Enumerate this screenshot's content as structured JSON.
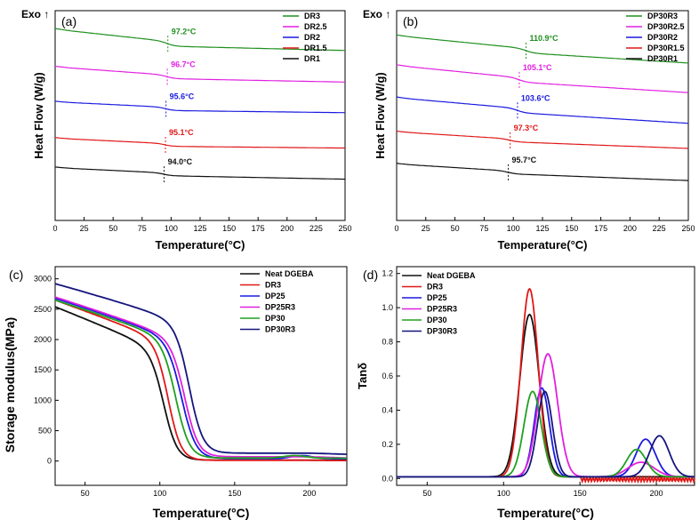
{
  "colors": {
    "green": "#1f8f1f",
    "magenta": "#e020e0",
    "blue": "#1a1adf",
    "red": "#e01818",
    "black": "#111111",
    "navy": "#15157f",
    "green2": "#20a020"
  },
  "chart_data": [
    {
      "id": "a",
      "panel_label": "(a)",
      "type": "line",
      "exo_label": "Exo ↑",
      "xlabel": "Temperature(°C)",
      "ylabel": "Heat Flow (W/g)",
      "xlim": [
        0,
        250
      ],
      "xticks": [
        "0",
        "25",
        "50",
        "75",
        "100",
        "125",
        "150",
        "175",
        "200",
        "225",
        "250"
      ],
      "series": [
        {
          "name": "DR3",
          "color_key": "green",
          "tg": 97.2,
          "tg_label": "97.2°C",
          "offset": 5.2,
          "slope_before": -0.0045,
          "slope_after": -0.001,
          "step": 0.17
        },
        {
          "name": "DR2.5",
          "color_key": "magenta",
          "tg": 96.7,
          "tg_label": "96.7°C",
          "offset": 4.0,
          "slope_before": -0.003,
          "slope_after": -0.0008,
          "step": 0.13
        },
        {
          "name": "DR2",
          "color_key": "blue",
          "tg": 95.6,
          "tg_label": "95.6°C",
          "offset": 2.85,
          "slope_before": -0.002,
          "slope_after": -0.0005,
          "step": 0.12
        },
        {
          "name": "DR1.5",
          "color_key": "red",
          "tg": 95.1,
          "tg_label": "95.1°C",
          "offset": 1.55,
          "slope_before": -0.002,
          "slope_after": -0.0004,
          "step": 0.1
        },
        {
          "name": "DR1",
          "color_key": "black",
          "tg": 94.0,
          "tg_label": "94.0°C",
          "offset": 0.5,
          "slope_before": -0.002,
          "slope_after": -0.0008,
          "step": 0.1
        }
      ]
    },
    {
      "id": "b",
      "panel_label": "(b)",
      "type": "line",
      "exo_label": "Exo ↑",
      "xlabel": "Temperature(°C)",
      "ylabel": "Heat Flow (W/g)",
      "xlim": [
        0,
        250
      ],
      "xticks": [
        "0",
        "25",
        "50",
        "75",
        "100",
        "125",
        "150",
        "175",
        "200",
        "225",
        "250"
      ],
      "series": [
        {
          "name": "DP30R3",
          "color_key": "green",
          "tg": 110.9,
          "tg_label": "110.9°C",
          "offset": 5.0,
          "slope_before": -0.004,
          "slope_after": -0.0025,
          "step": 0.15
        },
        {
          "name": "DP30R2.5",
          "color_key": "magenta",
          "tg": 105.1,
          "tg_label": "105.1°C",
          "offset": 4.0,
          "slope_before": -0.004,
          "slope_after": -0.0025,
          "step": 0.15
        },
        {
          "name": "DP30R2",
          "color_key": "blue",
          "tg": 103.6,
          "tg_label": "103.6°C",
          "offset": 2.95,
          "slope_before": -0.0035,
          "slope_after": -0.0025,
          "step": 0.15
        },
        {
          "name": "DP30R1.5",
          "color_key": "red",
          "tg": 97.3,
          "tg_label": "97.3°C",
          "offset": 1.9,
          "slope_before": -0.0025,
          "slope_after": -0.0015,
          "step": 0.1
        },
        {
          "name": "DP30R1",
          "color_key": "black",
          "tg": 95.7,
          "tg_label": "95.7°C",
          "offset": 0.8,
          "slope_before": -0.0025,
          "slope_after": -0.0015,
          "step": 0.1
        }
      ]
    },
    {
      "id": "c",
      "panel_label": "(c)",
      "type": "line",
      "xlabel": "Temperature(°C)",
      "ylabel": "Storage modulus(MPa)",
      "xlim": [
        30,
        225
      ],
      "ylim": [
        -400,
        3200
      ],
      "xticks": [
        50,
        100,
        150,
        200
      ],
      "yticks": [
        0,
        500,
        1000,
        1500,
        2000,
        2500,
        3000
      ],
      "series": [
        {
          "name": "Neat DGEBA",
          "color_key": "black",
          "e0": 2540,
          "slope": 10,
          "t_half": 103,
          "width": 4.5,
          "rubbery": 15,
          "bump_t": 0,
          "bump_h": 0
        },
        {
          "name": "DR3",
          "color_key": "red",
          "e0": 2650,
          "slope": 9,
          "t_half": 106,
          "width": 4.3,
          "rubbery": 12,
          "bump_t": 0,
          "bump_h": 0
        },
        {
          "name": "DP25",
          "color_key": "blue",
          "e0": 2680,
          "slope": 8,
          "t_half": 115,
          "width": 4.8,
          "rubbery": 40,
          "bump_t": 195,
          "bump_h": 50
        },
        {
          "name": "DP25R3",
          "color_key": "magenta",
          "e0": 2700,
          "slope": 8,
          "t_half": 117,
          "width": 4.6,
          "rubbery": 70,
          "bump_t": 0,
          "bump_h": 0
        },
        {
          "name": "DP30",
          "color_key": "green2",
          "e0": 2650,
          "slope": 8,
          "t_half": 111,
          "width": 4.6,
          "rubbery": 50,
          "bump_t": 190,
          "bump_h": 40
        },
        {
          "name": "DP30R3",
          "color_key": "navy",
          "e0": 2920,
          "slope": 7,
          "t_half": 120,
          "width": 4.6,
          "rubbery": 130,
          "bump_t": 0,
          "bump_h": 0
        }
      ]
    },
    {
      "id": "d",
      "panel_label": "(d)",
      "type": "line",
      "xlabel": "Temperature(°C)",
      "ylabel": "Tanδ",
      "xlim": [
        30,
        225
      ],
      "ylim": [
        -0.04,
        1.24
      ],
      "xticks": [
        50,
        100,
        150,
        200
      ],
      "yticks": [
        0.0,
        0.2,
        0.4,
        0.6,
        0.8,
        1.0,
        1.2
      ],
      "ytick_labels": [
        "0.0",
        "0.2",
        "0.4",
        "0.6",
        "0.8",
        "1.0",
        "1.2"
      ],
      "series": [
        {
          "name": "Neat DGEBA",
          "color_key": "black",
          "p1": 117,
          "h1": 0.95,
          "w1": 9,
          "p2": 0,
          "h2": 0,
          "w2": 1
        },
        {
          "name": "DR3",
          "color_key": "red",
          "p1": 117,
          "h1": 1.1,
          "w1": 8,
          "p2": 0,
          "h2": 0,
          "w2": 1
        },
        {
          "name": "DP25",
          "color_key": "blue",
          "p1": 125,
          "h1": 0.52,
          "w1": 7,
          "p2": 193,
          "h2": 0.22,
          "w2": 9
        },
        {
          "name": "DP25R3",
          "color_key": "magenta",
          "p1": 129,
          "h1": 0.72,
          "w1": 9,
          "p2": 190,
          "h2": 0.085,
          "w2": 12
        },
        {
          "name": "DP30",
          "color_key": "green2",
          "p1": 119,
          "h1": 0.5,
          "w1": 8,
          "p2": 187,
          "h2": 0.16,
          "w2": 9
        },
        {
          "name": "DP30R3",
          "color_key": "navy",
          "p1": 127,
          "h1": 0.5,
          "w1": 7,
          "p2": 202,
          "h2": 0.24,
          "w2": 9
        }
      ]
    }
  ]
}
